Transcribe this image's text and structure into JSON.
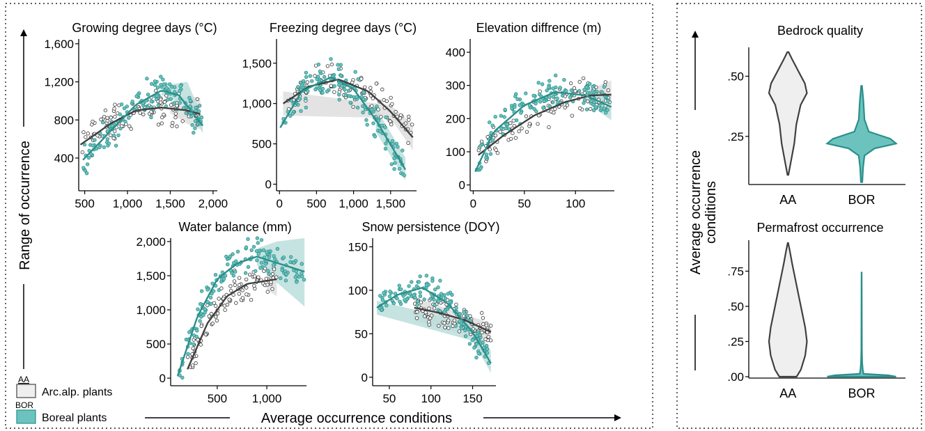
{
  "colors": {
    "aa": "#3f3f3f",
    "aa_fill": "#efefef",
    "bor": "#2a8f8b",
    "bor_fill": "#6cc3bd",
    "bor_ribbon": "#b6dcda",
    "aa_ribbon": "#dcdcdc"
  },
  "labels": {
    "y_left": "Range of occurrence",
    "x_bottom": "Average occurrence conditions",
    "y_right_line1": "Average occurrence",
    "y_right_line2": "conditions"
  },
  "legend": {
    "aa_abbrev": "AA",
    "aa_label": "Arc.alp. plants",
    "bor_abbrev": "BOR",
    "bor_label": "Boreal plants"
  },
  "chart_data": [
    {
      "type": "scatter",
      "title": "Growing degree days (°C)",
      "xticks": [
        500,
        1000,
        1500,
        2000
      ],
      "xtick_labels": [
        "500",
        "1,000",
        "1,500",
        "2,000"
      ],
      "yticks": [
        400,
        800,
        1200,
        1600
      ],
      "ytick_labels": [
        "400",
        "800",
        "1,200",
        "1,600"
      ],
      "xlim": [
        430,
        2050
      ],
      "ylim": [
        100,
        1650
      ],
      "series": [
        {
          "name": "AA",
          "x_range": [
            450,
            1850
          ],
          "fit": [
            [
              450,
              540
            ],
            [
              800,
              760
            ],
            [
              1100,
              900
            ],
            [
              1400,
              930
            ],
            [
              1700,
              900
            ],
            [
              1850,
              860
            ]
          ],
          "ribbon": [
            [
              1500,
              870,
              990
            ],
            [
              1700,
              760,
              1050
            ],
            [
              1850,
              700,
              1030
            ]
          ]
        },
        {
          "name": "BOR",
          "x_range": [
            480,
            1880
          ],
          "fit": [
            [
              480,
              380
            ],
            [
              800,
              680
            ],
            [
              1100,
              960
            ],
            [
              1400,
              1110
            ],
            [
              1600,
              1060
            ],
            [
              1880,
              740
            ]
          ],
          "ribbon": [
            [
              1400,
              1060,
              1160
            ],
            [
              1700,
              950,
              1200
            ],
            [
              1880,
              660,
              820
            ]
          ]
        }
      ]
    },
    {
      "type": "scatter",
      "title": "Freezing degree days (°C)",
      "xticks": [
        0,
        500,
        1000,
        1500
      ],
      "xtick_labels": [
        "0",
        "500",
        "1,000",
        "1,500"
      ],
      "yticks": [
        0,
        500,
        1000,
        1500
      ],
      "ytick_labels": [
        "0",
        "500",
        "1,000",
        "1,500"
      ],
      "xlim": [
        -40,
        1850
      ],
      "ylim": [
        -30,
        1800
      ],
      "series": [
        {
          "name": "AA",
          "x_range": [
            50,
            1800
          ],
          "fit": [
            [
              50,
              1000
            ],
            [
              400,
              1210
            ],
            [
              800,
              1300
            ],
            [
              1200,
              1150
            ],
            [
              1500,
              900
            ],
            [
              1800,
              580
            ]
          ],
          "ribbon": [
            [
              50,
              850,
              1150
            ],
            [
              1500,
              820,
              980
            ],
            [
              1800,
              420,
              740
            ]
          ]
        },
        {
          "name": "BOR",
          "x_range": [
            10,
            1700
          ],
          "fit": [
            [
              10,
              700
            ],
            [
              300,
              1150
            ],
            [
              700,
              1330
            ],
            [
              1000,
              1180
            ],
            [
              1300,
              800
            ],
            [
              1700,
              180
            ]
          ],
          "ribbon": [
            [
              1300,
              650,
              950
            ],
            [
              1700,
              50,
              330
            ]
          ]
        }
      ]
    },
    {
      "type": "scatter",
      "title": "Elevation diffrence (m)",
      "xticks": [
        0,
        50,
        100
      ],
      "xtick_labels": [
        "0",
        "50",
        "100"
      ],
      "yticks": [
        0,
        100,
        200,
        300,
        400
      ],
      "ytick_labels": [
        "0",
        "100",
        "200",
        "300",
        "400"
      ],
      "xlim": [
        -3,
        138
      ],
      "ylim": [
        -5,
        440
      ],
      "series": [
        {
          "name": "AA",
          "x_range": [
            5,
            135
          ],
          "fit": [
            [
              5,
              90
            ],
            [
              30,
              150
            ],
            [
              60,
              210
            ],
            [
              90,
              250
            ],
            [
              115,
              270
            ],
            [
              135,
              272
            ]
          ],
          "ribbon": [
            [
              115,
              250,
              290
            ],
            [
              135,
              225,
              315
            ]
          ]
        },
        {
          "name": "BOR",
          "x_range": [
            2,
            135
          ],
          "fit": [
            [
              2,
              40
            ],
            [
              20,
              160
            ],
            [
              50,
              240
            ],
            [
              80,
              280
            ],
            [
              110,
              270
            ],
            [
              135,
              235
            ]
          ],
          "ribbon": [
            [
              110,
              250,
              295
            ],
            [
              135,
              195,
              275
            ]
          ]
        }
      ]
    },
    {
      "type": "scatter",
      "title": "Water balance (mm)",
      "xticks": [
        500,
        1000
      ],
      "xtick_labels": [
        "500",
        "1,000"
      ],
      "yticks": [
        0,
        500,
        1000,
        1500,
        2000
      ],
      "ytick_labels": [
        "0",
        "500",
        "1,000",
        "1,500",
        "2,000"
      ],
      "xlim": [
        30,
        1400
      ],
      "ylim": [
        -50,
        2050
      ],
      "series": [
        {
          "name": "AA",
          "x_range": [
            200,
            1100
          ],
          "fit": [
            [
              200,
              130
            ],
            [
              400,
              800
            ],
            [
              600,
              1200
            ],
            [
              800,
              1380
            ],
            [
              1100,
              1450
            ]
          ],
          "ribbon": [
            [
              1000,
              1300,
              1520
            ],
            [
              1100,
              1200,
              1560
            ]
          ]
        },
        {
          "name": "BOR",
          "x_range": [
            100,
            1380
          ],
          "fit": [
            [
              100,
              30
            ],
            [
              300,
              900
            ],
            [
              500,
              1450
            ],
            [
              700,
              1680
            ],
            [
              900,
              1780
            ],
            [
              1380,
              1560
            ]
          ],
          "ribbon": [
            [
              900,
              1650,
              1900
            ],
            [
              1100,
              1400,
              2000
            ],
            [
              1380,
              1050,
              2050
            ]
          ]
        }
      ]
    },
    {
      "type": "scatter",
      "title": "Snow persistence (DOY)",
      "xticks": [
        50,
        100,
        150
      ],
      "xtick_labels": [
        "50",
        "100",
        "150"
      ],
      "yticks": [
        0,
        50,
        100,
        150
      ],
      "ytick_labels": [
        "0",
        "50",
        "100",
        "150"
      ],
      "xlim": [
        30,
        178
      ],
      "ylim": [
        -5,
        160
      ],
      "series": [
        {
          "name": "AA",
          "x_range": [
            80,
            172
          ],
          "fit": [
            [
              80,
              80
            ],
            [
              110,
              74
            ],
            [
              140,
              66
            ],
            [
              172,
              52
            ]
          ],
          "ribbon": [
            [
              80,
              65,
              92
            ],
            [
              172,
              42,
              62
            ]
          ]
        },
        {
          "name": "BOR",
          "x_range": [
            35,
            172
          ],
          "fit": [
            [
              35,
              80
            ],
            [
              60,
              95
            ],
            [
              90,
              103
            ],
            [
              120,
              85
            ],
            [
              150,
              52
            ],
            [
              172,
              16
            ]
          ],
          "ribbon": [
            [
              35,
              72,
              88
            ],
            [
              150,
              42,
              62
            ],
            [
              172,
              5,
              30
            ]
          ]
        }
      ]
    },
    {
      "type": "violin",
      "title": "Bedrock quality",
      "categories": [
        "AA",
        "BOR"
      ],
      "yticks": [
        0.25,
        0.5
      ],
      "ytick_labels": [
        ".25",
        ".50"
      ],
      "ylim": [
        0.05,
        0.62
      ],
      "violins": [
        {
          "name": "AA",
          "min": 0.09,
          "max": 0.6,
          "profile": [
            [
              0.09,
              0.002
            ],
            [
              0.15,
              0.015
            ],
            [
              0.22,
              0.03
            ],
            [
              0.3,
              0.04
            ],
            [
              0.38,
              0.06
            ],
            [
              0.43,
              0.09
            ],
            [
              0.47,
              0.08
            ],
            [
              0.52,
              0.05
            ],
            [
              0.57,
              0.02
            ],
            [
              0.6,
              0.003
            ]
          ]
        },
        {
          "name": "BOR",
          "min": 0.06,
          "max": 0.46,
          "profile": [
            [
              0.06,
              0.005
            ],
            [
              0.12,
              0.01
            ],
            [
              0.17,
              0.02
            ],
            [
              0.2,
              0.09
            ],
            [
              0.22,
              0.24
            ],
            [
              0.24,
              0.2
            ],
            [
              0.27,
              0.05
            ],
            [
              0.32,
              0.02
            ],
            [
              0.4,
              0.012
            ],
            [
              0.46,
              0.003
            ]
          ]
        }
      ]
    },
    {
      "type": "violin",
      "title": "Permafrost occurrence",
      "categories": [
        "AA",
        "BOR"
      ],
      "yticks": [
        0,
        0.25,
        0.5,
        0.75
      ],
      "ytick_labels": [
        ".00",
        ".25",
        ".50",
        ".75"
      ],
      "ylim": [
        -0.01,
        0.97
      ],
      "violins": [
        {
          "name": "AA",
          "min": 0.0,
          "max": 0.95,
          "profile": [
            [
              0.0,
              0.1
            ],
            [
              0.05,
              0.15
            ],
            [
              0.15,
              0.2
            ],
            [
              0.25,
              0.22
            ],
            [
              0.35,
              0.2
            ],
            [
              0.5,
              0.15
            ],
            [
              0.65,
              0.1
            ],
            [
              0.8,
              0.05
            ],
            [
              0.9,
              0.02
            ],
            [
              0.95,
              0.003
            ]
          ]
        },
        {
          "name": "BOR",
          "min": 0.0,
          "max": 0.74,
          "profile": [
            [
              0.0,
              0.9
            ],
            [
              0.01,
              0.7
            ],
            [
              0.02,
              0.05
            ],
            [
              0.05,
              0.03
            ],
            [
              0.1,
              0.015
            ],
            [
              0.2,
              0.008
            ],
            [
              0.4,
              0.006
            ],
            [
              0.6,
              0.004
            ],
            [
              0.74,
              0.002
            ]
          ]
        }
      ]
    }
  ]
}
